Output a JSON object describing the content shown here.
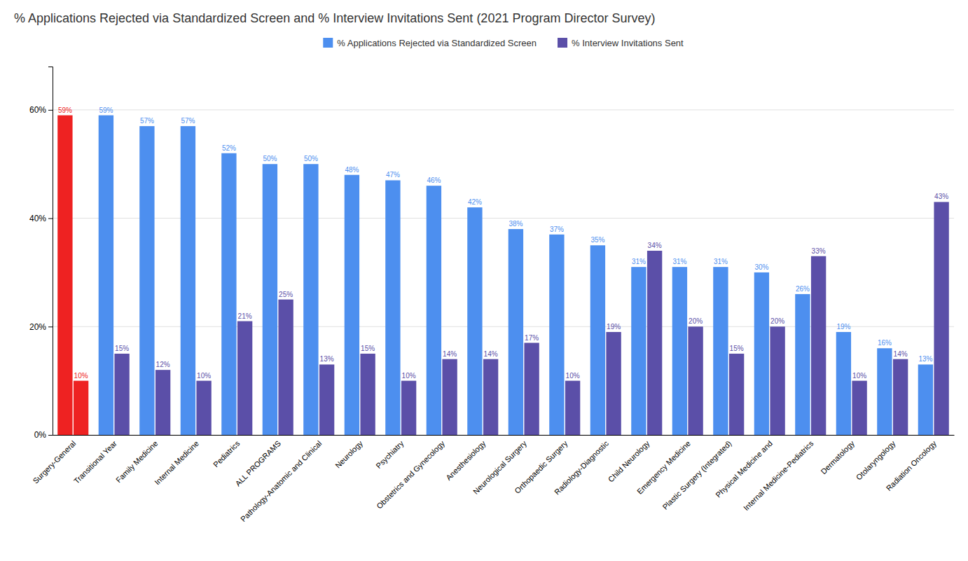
{
  "chart_data": {
    "type": "bar",
    "title": "% Applications Rejected via Standardized Screen and % Interview Invitations Sent (2021 Program Director Survey)",
    "categories": [
      "Surgery-General",
      "Transitional Year",
      "Family Medicine",
      "Internal Medicine",
      "Pediatrics",
      "ALL PROGRAMS",
      "Pathology-Anatomic and Clinical",
      "Neurology",
      "Psychiatry",
      "Obstetrics and Gynecology",
      "Anesthesiology",
      "Neurological Surgery",
      "Orthopaedic Surgery",
      "Radiology-Diagnostic",
      "Child Neurology",
      "Emergency Medicine",
      "Plastic Surgery (Integrated)",
      "Physical Medicine and",
      "Internal Medicine-Pediatrics",
      "Dermatology",
      "Otolaryngology",
      "Radiation Oncology"
    ],
    "series": [
      {
        "name": "% Applications Rejected via Standardized Screen",
        "color": "#4d8fef",
        "colors": [
          "#ee2222",
          "#4d8fef",
          "#4d8fef",
          "#4d8fef",
          "#4d8fef",
          "#4d8fef",
          "#4d8fef",
          "#4d8fef",
          "#4d8fef",
          "#4d8fef",
          "#4d8fef",
          "#4d8fef",
          "#4d8fef",
          "#4d8fef",
          "#4d8fef",
          "#4d8fef",
          "#4d8fef",
          "#4d8fef",
          "#4d8fef",
          "#4d8fef",
          "#4d8fef",
          "#4d8fef"
        ],
        "values": [
          59,
          59,
          57,
          57,
          52,
          50,
          50,
          48,
          47,
          46,
          42,
          38,
          37,
          35,
          31,
          31,
          31,
          30,
          26,
          19,
          16,
          13
        ],
        "value_labels": [
          "59%",
          "59%",
          "57%",
          "57%",
          "52%",
          "50%",
          "50%",
          "48%",
          "47%",
          "46%",
          "42%",
          "38%",
          "37%",
          "35%",
          "31%",
          "31%",
          "31%",
          "30%",
          "26%",
          "19%",
          "16%",
          "13%"
        ]
      },
      {
        "name": "% Interview Invitations Sent",
        "color": "#5b4fa8",
        "colors": [
          "#ee2222",
          "#5b4fa8",
          "#5b4fa8",
          "#5b4fa8",
          "#5b4fa8",
          "#5b4fa8",
          "#5b4fa8",
          "#5b4fa8",
          "#5b4fa8",
          "#5b4fa8",
          "#5b4fa8",
          "#5b4fa8",
          "#5b4fa8",
          "#5b4fa8",
          "#5b4fa8",
          "#5b4fa8",
          "#5b4fa8",
          "#5b4fa8",
          "#5b4fa8",
          "#5b4fa8",
          "#5b4fa8",
          "#5b4fa8"
        ],
        "values": [
          10,
          15,
          12,
          10,
          21,
          25,
          13,
          15,
          10,
          14,
          14,
          17,
          10,
          19,
          34,
          20,
          15,
          20,
          33,
          10,
          14,
          43
        ],
        "value_labels": [
          "10%",
          "15%",
          "12%",
          "10%",
          "21%",
          "25%",
          "13%",
          "15%",
          "10%",
          "14%",
          "14%",
          "17%",
          "10%",
          "19%",
          "34%",
          "20%",
          "15%",
          "20%",
          "33%",
          "10%",
          "14%",
          "43%"
        ]
      }
    ],
    "ylim": [
      0,
      68
    ],
    "yticks": [
      {
        "value": 0,
        "label": "0%"
      },
      {
        "value": 20,
        "label": "20%"
      },
      {
        "value": 40,
        "label": "40%"
      },
      {
        "value": 60,
        "label": "60%"
      }
    ],
    "grid": true,
    "legend": "top",
    "data_labels": true
  }
}
